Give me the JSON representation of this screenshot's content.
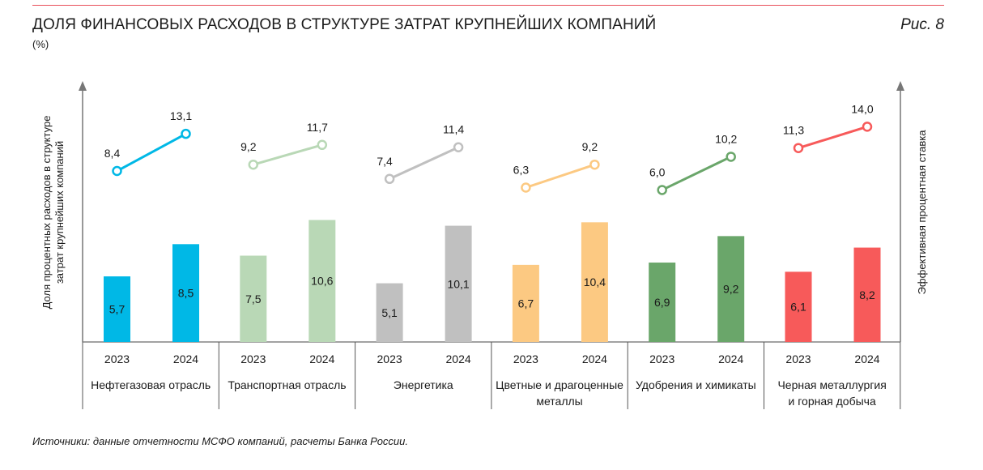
{
  "header": {
    "title": "ДОЛЯ ФИНАНСОВЫХ РАСХОДОВ В СТРУКТУРЕ ЗАТРАТ КРУПНЕЙШИХ КОМПАНИЙ",
    "subtitle": "(%)",
    "figure_label": "Рис. 8"
  },
  "footer": {
    "source": "Источники: данные отчетности МСФО компаний, расчеты Банка России."
  },
  "chart_data": {
    "type": "bar",
    "title": "ДОЛЯ ФИНАНСОВЫХ РАСХОДОВ В СТРУКТУРЕ ЗАТРАТ КРУПНЕЙШИХ КОМПАНИЙ",
    "subtitle": "(%)",
    "ylabel_left": "Доля процентных расходов в структуре затрат крупнейших компаний",
    "ylabel_right": "Эффективная процентная ставка",
    "years": [
      "2023",
      "2024"
    ],
    "grid": false,
    "groups": [
      {
        "name": "Нефтегазовая отрасль",
        "name_lines": [
          "Нефтегазовая отрасль"
        ],
        "color": "#00b8e6",
        "filled_markers": true,
        "bars": [
          5.7,
          8.5
        ],
        "bar_labels": [
          "5,7",
          "8,5"
        ],
        "rates": [
          8.4,
          13.1
        ],
        "rate_labels": [
          "8,4",
          "13,1"
        ]
      },
      {
        "name": "Транспортная отрасль",
        "name_lines": [
          "Транспортная отрасль"
        ],
        "color": "#b9d8b6",
        "filled_markers": false,
        "bars": [
          7.5,
          10.6
        ],
        "bar_labels": [
          "7,5",
          "10,6"
        ],
        "rates": [
          9.2,
          11.7
        ],
        "rate_labels": [
          "9,2",
          "11,7"
        ]
      },
      {
        "name": "Энергетика",
        "name_lines": [
          "Энергетика"
        ],
        "color": "#c0c0c0",
        "filled_markers": false,
        "bars": [
          5.1,
          10.1
        ],
        "bar_labels": [
          "5,1",
          "10,1"
        ],
        "rates": [
          7.4,
          11.4
        ],
        "rate_labels": [
          "7,4",
          "11,4"
        ]
      },
      {
        "name": "Цветные и драгоценные металлы",
        "name_lines": [
          "Цветные и драгоценные",
          "металлы"
        ],
        "color": "#fcc982",
        "filled_markers": false,
        "bars": [
          6.7,
          10.4
        ],
        "bar_labels": [
          "6,7",
          "10,4"
        ],
        "rates": [
          6.3,
          9.2
        ],
        "rate_labels": [
          "6,3",
          "9,2"
        ]
      },
      {
        "name": "Удобрения и химикаты",
        "name_lines": [
          "Удобрения и химикаты"
        ],
        "color": "#6aa66a",
        "filled_markers": false,
        "bars": [
          6.9,
          9.2
        ],
        "bar_labels": [
          "6,9",
          "9,2"
        ],
        "rates": [
          6.0,
          10.2
        ],
        "rate_labels": [
          "6,0",
          "10,2"
        ]
      },
      {
        "name": "Черная металлургия и горная добыча",
        "name_lines": [
          "Черная металлургия",
          "и горная добыча"
        ],
        "color": "#f75a5a",
        "filled_markers": false,
        "bars": [
          6.1,
          8.2
        ],
        "bar_labels": [
          "6,1",
          "8,2"
        ],
        "rates": [
          11.3,
          14.0
        ],
        "rate_labels": [
          "11,3",
          "14,0"
        ]
      }
    ]
  }
}
